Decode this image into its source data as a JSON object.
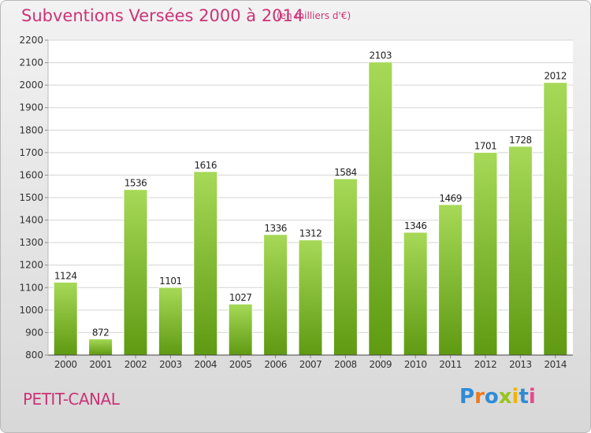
{
  "header": {
    "title": "Subventions Versées 2000 à 2014",
    "subtitle": "(en milliers d'€)"
  },
  "footer": {
    "place": "PETIT-CANAL",
    "logo": "Proxiti"
  },
  "colors": {
    "title": "#cc3377",
    "bar_light": "#a6d957",
    "bar_dark": "#5f9a12"
  },
  "chart_data": {
    "type": "bar",
    "title": "Subventions Versées 2000 à 2014",
    "subtitle": "(en milliers d'€)",
    "xlabel": "",
    "ylabel": "",
    "categories": [
      "2000",
      "2001",
      "2002",
      "2003",
      "2004",
      "2005",
      "2006",
      "2007",
      "2008",
      "2009",
      "2010",
      "2011",
      "2012",
      "2013",
      "2014"
    ],
    "values": [
      1124,
      872,
      1536,
      1101,
      1616,
      1027,
      1336,
      1312,
      1584,
      2103,
      1346,
      1469,
      1701,
      1728,
      2012
    ],
    "ylim": [
      800,
      2200
    ],
    "yticks": [
      800,
      900,
      1000,
      1100,
      1200,
      1300,
      1400,
      1500,
      1600,
      1700,
      1800,
      1900,
      2000,
      2100,
      2200
    ],
    "grid": true,
    "legend": "none"
  }
}
